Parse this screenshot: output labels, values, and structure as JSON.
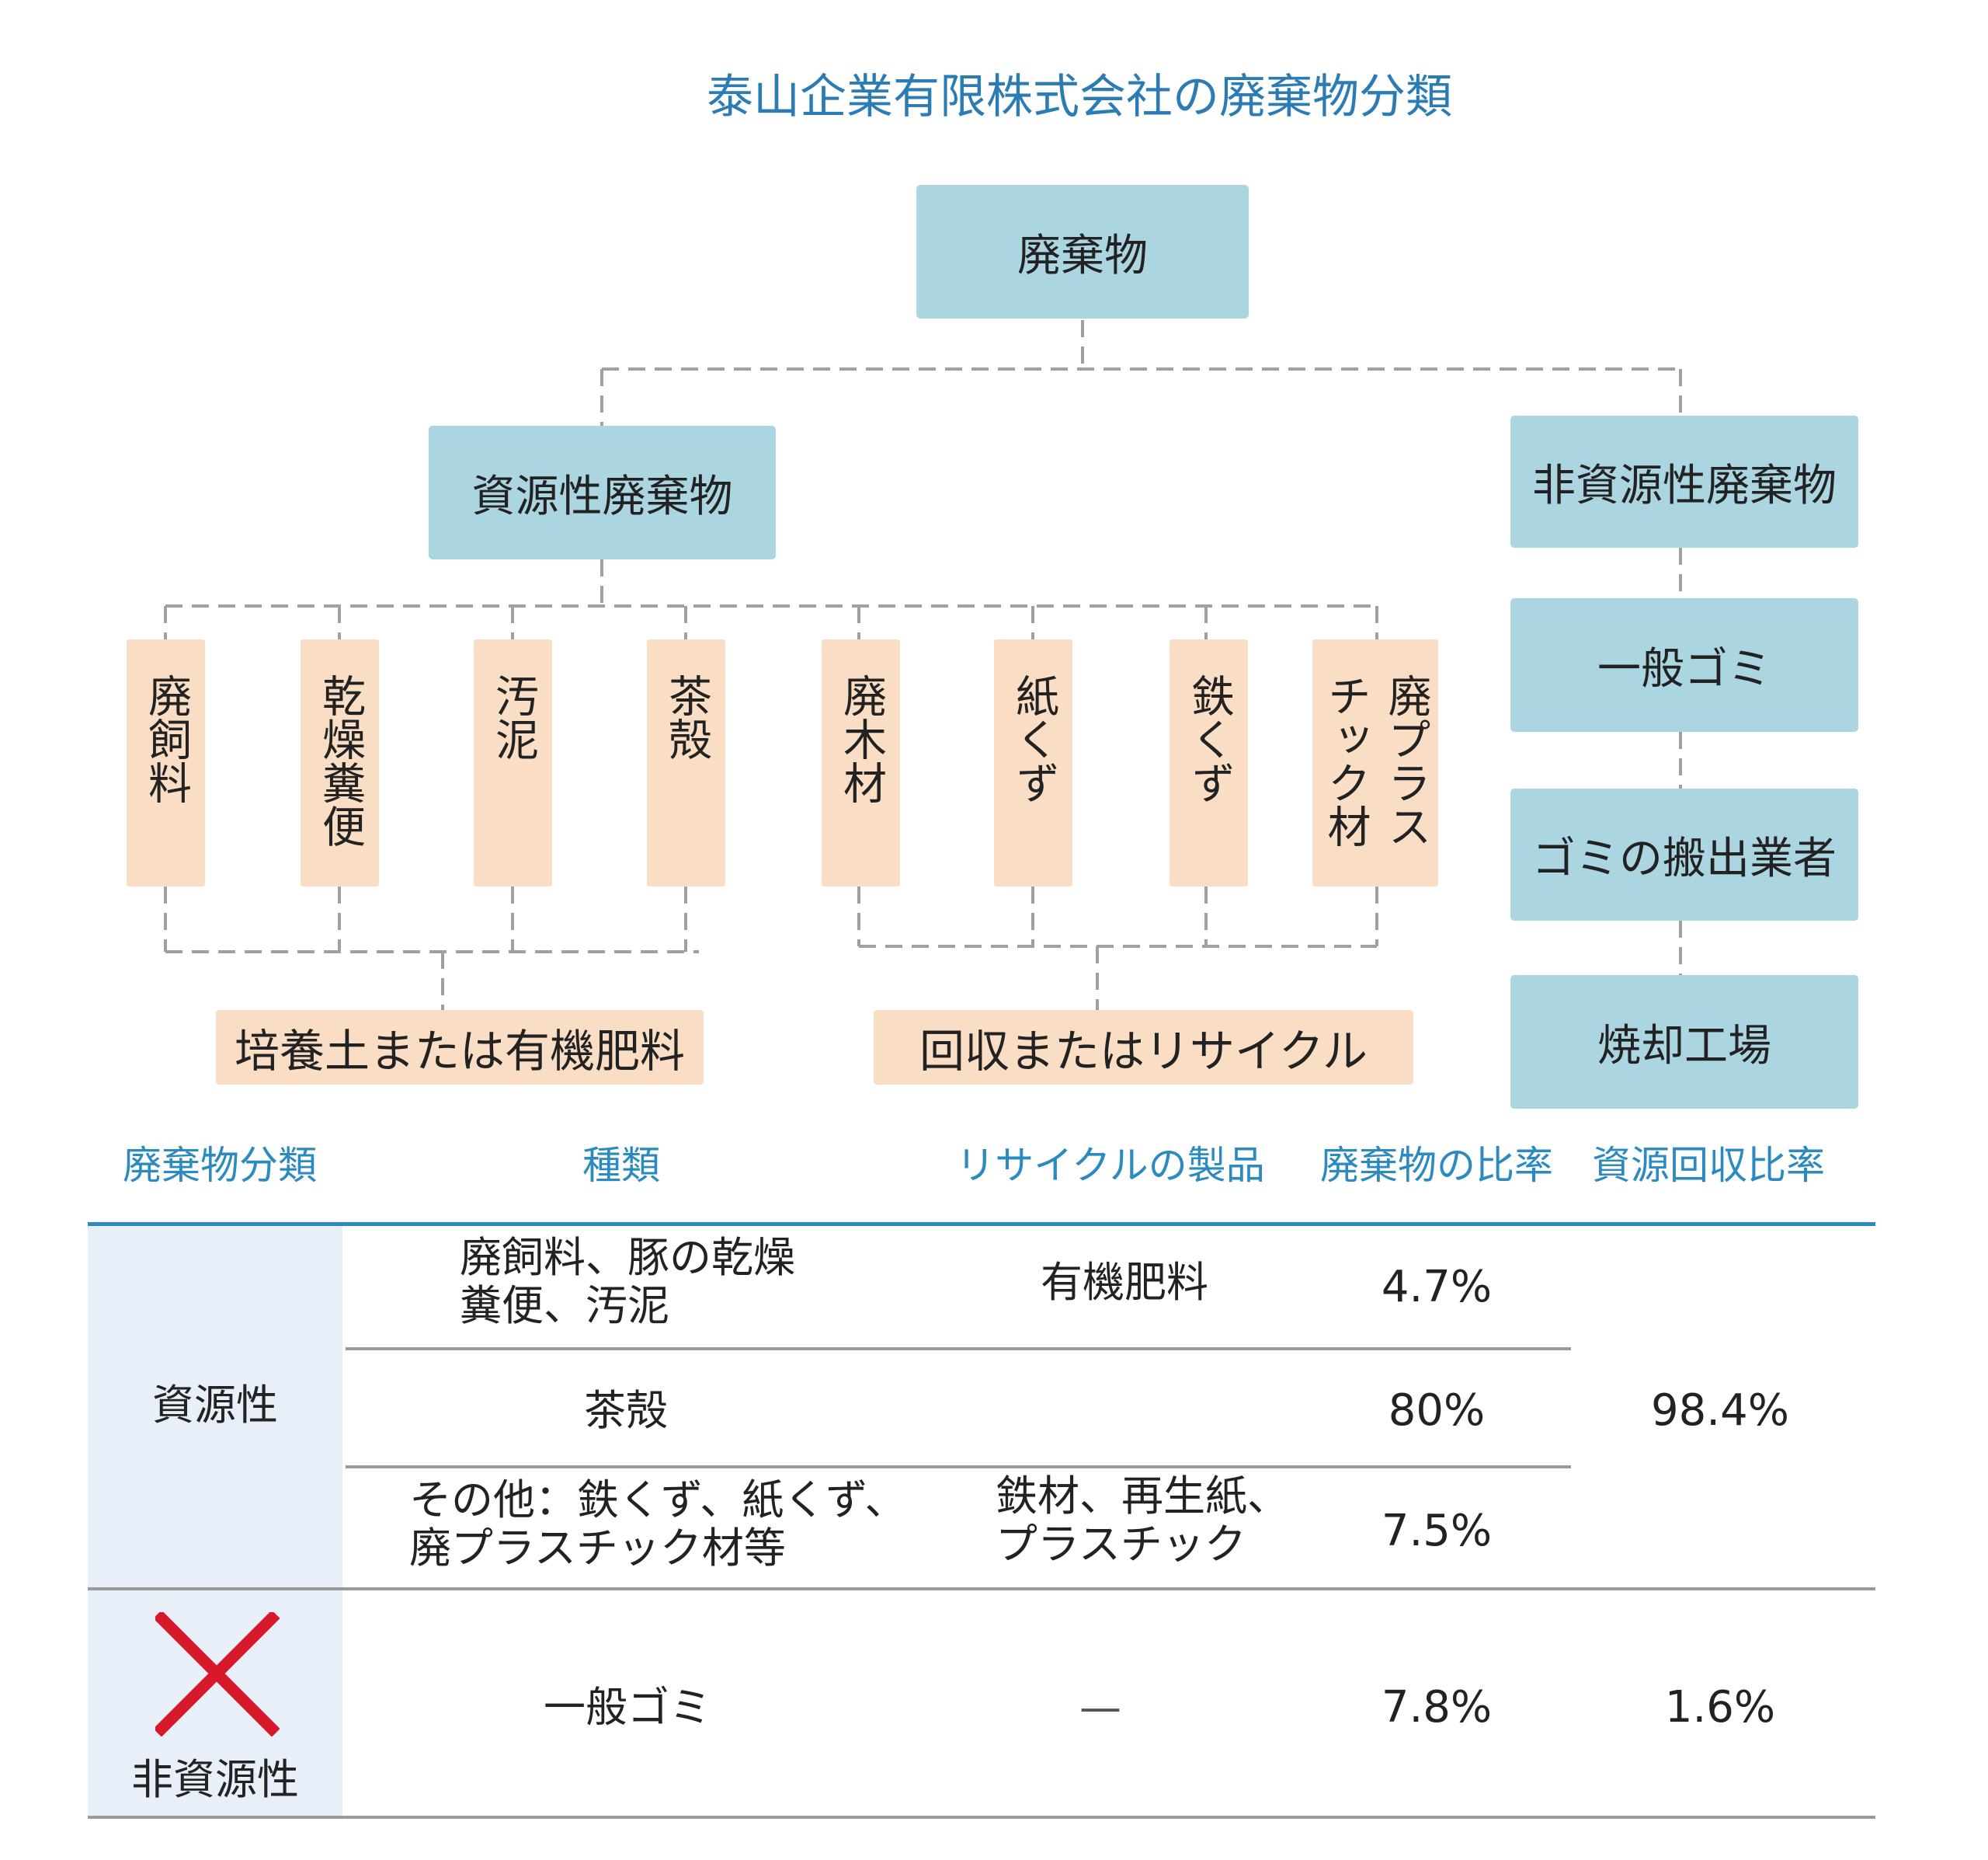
{
  "title": "泰山企業有限株式会社の廃棄物分類",
  "tree": {
    "root": "廃棄物",
    "resource": "資源性廃棄物",
    "nonresource": "非資源性廃棄物",
    "items": [
      "廃飼料",
      "乾燥糞便",
      "汚泥",
      "茶殻",
      "廃木材",
      "紙くず",
      "鉄くず",
      "廃プラスチック材"
    ],
    "last_item_col1": "廃プラス",
    "last_item_col2": "チック材",
    "group1": "培養土または有機肥料",
    "group2": "回収またはリサイクル",
    "chain": [
      "一般ゴミ",
      "ゴミの搬出業者",
      "焼却工場"
    ]
  },
  "table": {
    "headers": [
      "廃棄物分類",
      "種類",
      "リサイクルの製品",
      "廃棄物の比率",
      "資源回収比率"
    ],
    "resource_label": "資源性",
    "nonresource_label": "非資源性",
    "rows": [
      {
        "type_line1": "廃飼料、豚の乾燥",
        "type_line2": "糞便、汚泥",
        "product": "有機肥料",
        "ratio": "4.7%"
      },
      {
        "type": "茶殻",
        "product": "",
        "ratio": "80%"
      },
      {
        "type_line1": "その他：鉄くず、紙くず、",
        "type_line2": "廃プラスチック材等",
        "product_line1": "鉄材、再生紙、",
        "product_line2": "プラスチック",
        "ratio": "7.5%"
      }
    ],
    "resource_recovery": "98.4%",
    "nonresource_row": {
      "type": "一般ゴミ",
      "product": "—",
      "ratio": "7.8%",
      "recovery": "1.6%"
    },
    "x_mark_color": "#d7192b"
  },
  "colors": {
    "blue_box": "#abd5e1",
    "peach_box": "#f9dec5",
    "accent": "#2b7cb5"
  }
}
